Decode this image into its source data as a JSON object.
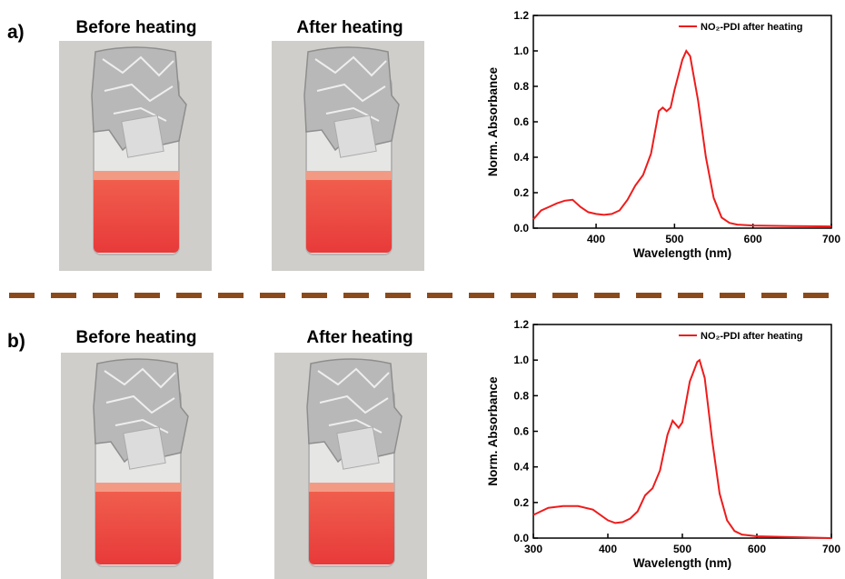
{
  "panels": [
    {
      "label": "a)",
      "captions": [
        "Before heating",
        "After heating"
      ]
    },
    {
      "label": "b)",
      "captions": [
        "Before heating",
        "After heating"
      ]
    }
  ],
  "chart_data": [
    {
      "type": "line",
      "xlabel": "Wavelength (nm)",
      "ylabel": "Norm. Absorbance",
      "xlim": [
        320,
        700
      ],
      "xticks": [
        400,
        500,
        600,
        700
      ],
      "ylim": [
        0,
        1.2
      ],
      "yticks": [
        {
          "value": 0,
          "label": "0.0"
        },
        0.2,
        0.4,
        0.6,
        0.8,
        {
          "value": 1,
          "label": "1.0"
        },
        1.2
      ],
      "legend": "top-right",
      "series": [
        {
          "name": "NO₂-PDI after heating",
          "color": "#ee1c1c",
          "x": [
            320,
            330,
            340,
            350,
            360,
            370,
            380,
            390,
            400,
            410,
            420,
            430,
            440,
            450,
            460,
            470,
            480,
            485,
            490,
            495,
            500,
            510,
            515,
            520,
            530,
            540,
            550,
            560,
            570,
            580,
            600,
            650,
            700
          ],
          "values": [
            0.05,
            0.1,
            0.12,
            0.14,
            0.155,
            0.16,
            0.12,
            0.09,
            0.08,
            0.075,
            0.08,
            0.1,
            0.16,
            0.24,
            0.3,
            0.42,
            0.66,
            0.68,
            0.66,
            0.68,
            0.78,
            0.95,
            1.0,
            0.97,
            0.72,
            0.4,
            0.17,
            0.06,
            0.03,
            0.02,
            0.015,
            0.012,
            0.01
          ]
        }
      ]
    },
    {
      "type": "line",
      "xlabel": "Wavelength (nm)",
      "ylabel": "Norm. Absorbance",
      "xlim": [
        300,
        700
      ],
      "xticks": [
        300,
        400,
        500,
        600,
        700
      ],
      "ylim": [
        0,
        1.2
      ],
      "yticks": [
        {
          "value": 0,
          "label": "0.0"
        },
        0.2,
        0.4,
        0.6,
        0.8,
        {
          "value": 1,
          "label": "1.0"
        },
        1.2
      ],
      "legend": "top-right",
      "series": [
        {
          "name": "NO₂-PDI after heating",
          "color": "#ee1c1c",
          "x": [
            300,
            320,
            340,
            360,
            380,
            400,
            410,
            420,
            430,
            440,
            450,
            460,
            470,
            480,
            487,
            495,
            500,
            510,
            520,
            523,
            530,
            540,
            550,
            560,
            570,
            580,
            600,
            700
          ],
          "values": [
            0.13,
            0.17,
            0.18,
            0.18,
            0.16,
            0.1,
            0.085,
            0.09,
            0.11,
            0.15,
            0.24,
            0.28,
            0.38,
            0.58,
            0.66,
            0.62,
            0.65,
            0.88,
            0.99,
            1.0,
            0.9,
            0.55,
            0.25,
            0.1,
            0.04,
            0.02,
            0.01,
            0
          ]
        }
      ]
    }
  ]
}
